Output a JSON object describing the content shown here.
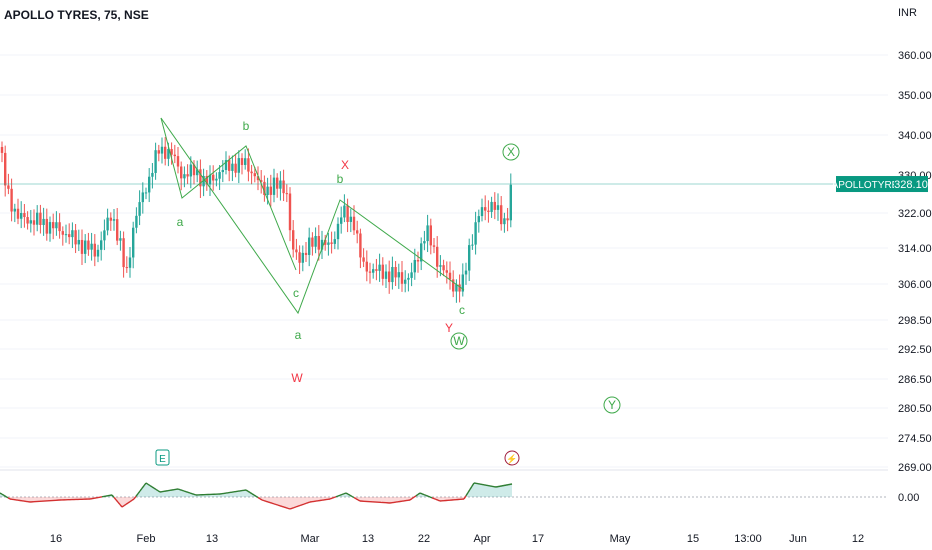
{
  "symbol_title": "APOLLO TYRES, 75, NSE",
  "currency": "INR",
  "price_badge": {
    "ticker": "APOLLOTYRE",
    "price": "328.10"
  },
  "colors": {
    "up": "#26a69a",
    "down": "#ef5350",
    "wave": "#3fa94b",
    "red_label": "#f23645",
    "grid": "#f0f3fa"
  },
  "chart_data": {
    "type": "candlestick",
    "y_ticks": [
      "360.00",
      "350.00",
      "340.00",
      "330.00",
      "322.00",
      "314.00",
      "306.00",
      "298.50",
      "292.50",
      "286.50",
      "280.50",
      "274.50",
      "269.00"
    ],
    "x_ticks": [
      "16",
      "Feb",
      "13",
      "Mar",
      "13",
      "22",
      "Apr",
      "17",
      "May",
      "15",
      "13:00",
      "Jun",
      "12"
    ],
    "last_price": 328.1,
    "oscillator_ticks": [
      "0.00"
    ],
    "wave_labels": [
      {
        "text": "a",
        "color": "green"
      },
      {
        "text": "b",
        "color": "green"
      },
      {
        "text": "c",
        "color": "green"
      },
      {
        "text": "a",
        "color": "green"
      },
      {
        "text": "b",
        "color": "green"
      },
      {
        "text": "c",
        "color": "green"
      },
      {
        "text": "W",
        "color": "red"
      },
      {
        "text": "X",
        "color": "red"
      },
      {
        "text": "Y",
        "color": "red"
      },
      {
        "text": "W",
        "color": "green",
        "circled": true
      },
      {
        "text": "X",
        "color": "green",
        "circled": true
      },
      {
        "text": "Y",
        "color": "green",
        "circled": true
      }
    ],
    "markers": [
      {
        "text": "E",
        "kind": "earnings"
      },
      {
        "text": "⚡",
        "kind": "dividend"
      }
    ]
  }
}
